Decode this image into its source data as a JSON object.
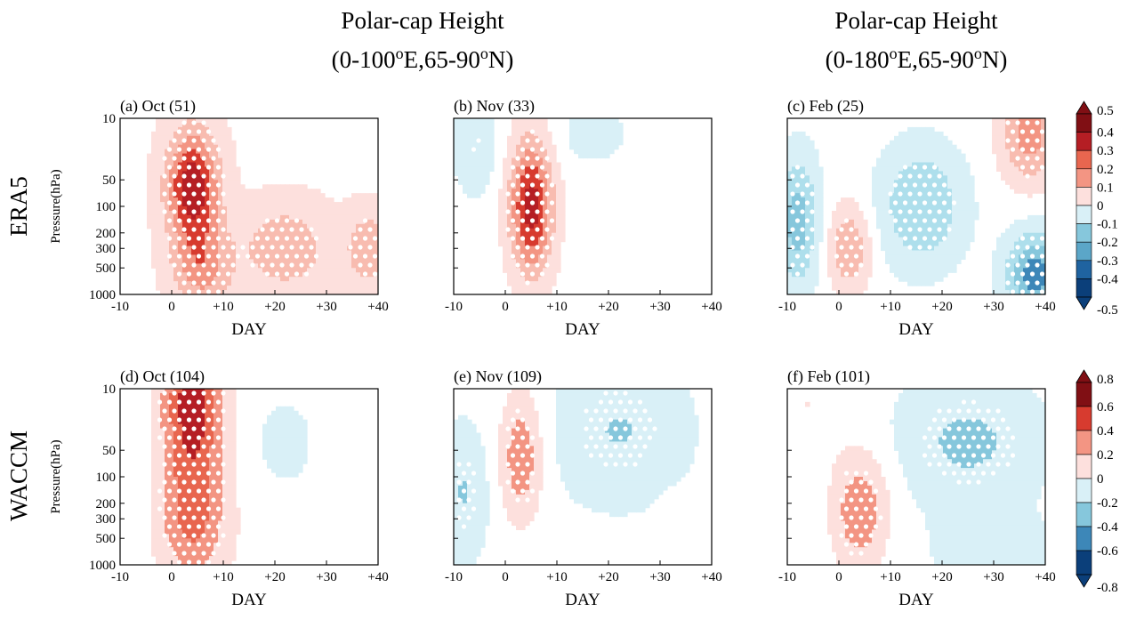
{
  "figure": {
    "column_titles": [
      {
        "line1": "Polar-cap Height",
        "line2_pre": "(0-100",
        "line2_sup": "o",
        "line2_mid": "E,65-90",
        "line2_sup2": "o",
        "line2_post": "N)"
      },
      {
        "line1": "Polar-cap Height",
        "line2_pre": "(0-180",
        "line2_sup": "o",
        "line2_mid": "E,65-90",
        "line2_sup2": "o",
        "line2_post": "N)"
      }
    ],
    "row_labels": [
      "ERA5",
      "WACCM"
    ]
  },
  "chart_data": [
    {
      "type": "heatmap",
      "panel": "a",
      "title": "(a) Oct (51)",
      "dataset": "ERA5",
      "xlabel": "DAY",
      "ylabel": "Pressure(hPa)",
      "xlim": [
        -10,
        40
      ],
      "ylim": [
        1000,
        10
      ],
      "yscale": "log",
      "xticks": [
        "-10",
        "0",
        "+10",
        "+20",
        "+30",
        "+40"
      ],
      "yticks": [
        "10",
        "50",
        "100",
        "200",
        "300",
        "500",
        "1000"
      ],
      "levels": [
        -0.5,
        -0.4,
        -0.3,
        -0.2,
        -0.1,
        0,
        0.1,
        0.2,
        0.3,
        0.4,
        0.5
      ],
      "features": [
        {
          "day": 4,
          "pressure": 60,
          "value": 0.5,
          "sign": "positive",
          "note": "maximum, stratosphere"
        },
        {
          "day": 6,
          "pressure": 500,
          "value": 0.25,
          "sign": "positive",
          "note": "downward extension"
        },
        {
          "day": 22,
          "pressure": 300,
          "value": 0.2,
          "sign": "positive"
        },
        {
          "day": 38,
          "pressure": 300,
          "value": 0.2,
          "sign": "positive"
        }
      ],
      "stippling": "significant over days 0 to +30, 30-1000 hPa and near +38"
    },
    {
      "type": "heatmap",
      "panel": "b",
      "title": "(b) Nov (33)",
      "dataset": "ERA5",
      "xlabel": "DAY",
      "ylabel": "",
      "xlim": [
        -10,
        40
      ],
      "ylim": [
        1000,
        10
      ],
      "yscale": "log",
      "xticks": [
        "-10",
        "0",
        "+10",
        "+20",
        "+30",
        "+40"
      ],
      "yticks": [],
      "levels": [
        -0.5,
        -0.4,
        -0.3,
        -0.2,
        -0.1,
        0,
        0.1,
        0.2,
        0.3,
        0.4,
        0.5
      ],
      "features": [
        {
          "day": 5,
          "pressure": 100,
          "value": 0.5,
          "sign": "positive",
          "note": "maximum"
        },
        {
          "day": -6,
          "pressure": 20,
          "value": -0.15,
          "sign": "negative"
        },
        {
          "day": 17,
          "pressure": 15,
          "value": -0.1,
          "sign": "negative"
        },
        {
          "day": 30,
          "pressure": 700,
          "value": 0.05,
          "sign": "positive"
        }
      ],
      "stippling": "significant over days 0 to +10, 20-1000 hPa"
    },
    {
      "type": "heatmap",
      "panel": "c",
      "title": "(c) Feb (25)",
      "dataset": "ERA5",
      "xlabel": "DAY",
      "ylabel": "",
      "xlim": [
        -10,
        40
      ],
      "ylim": [
        1000,
        10
      ],
      "yscale": "log",
      "xticks": [
        "-10",
        "0",
        "+10",
        "+20",
        "+30",
        "+40"
      ],
      "yticks": [],
      "levels": [
        -0.5,
        -0.4,
        -0.3,
        -0.2,
        -0.1,
        0,
        0.1,
        0.2,
        0.3,
        0.4,
        0.5
      ],
      "features": [
        {
          "day": -8,
          "pressure": 150,
          "value": -0.3,
          "sign": "negative"
        },
        {
          "day": 2,
          "pressure": 300,
          "value": 0.25,
          "sign": "positive"
        },
        {
          "day": 16,
          "pressure": 100,
          "value": -0.25,
          "sign": "negative"
        },
        {
          "day": 37,
          "pressure": 15,
          "value": 0.3,
          "sign": "positive"
        },
        {
          "day": 38,
          "pressure": 600,
          "value": -0.4,
          "sign": "negative"
        }
      ],
      "stippling": "significant at days -10 to -5, +10 to +25 and +34 to +40"
    },
    {
      "type": "heatmap",
      "panel": "d",
      "title": "(d) Oct (104)",
      "dataset": "WACCM",
      "xlabel": "DAY",
      "ylabel": "Pressure(hPa)",
      "xlim": [
        -10,
        40
      ],
      "ylim": [
        1000,
        10
      ],
      "yscale": "log",
      "xticks": [
        "-10",
        "0",
        "+10",
        "+20",
        "+30",
        "+40"
      ],
      "yticks": [
        "10",
        "50",
        "100",
        "200",
        "300",
        "500",
        "1000"
      ],
      "levels": [
        -0.8,
        -0.6,
        -0.4,
        -0.2,
        0,
        0.2,
        0.4,
        0.6,
        0.8
      ],
      "features": [
        {
          "day": 4,
          "pressure": 15,
          "value": 0.8,
          "sign": "positive",
          "note": "maximum"
        },
        {
          "day": 4,
          "pressure": 300,
          "value": 0.5,
          "sign": "positive"
        },
        {
          "day": 22,
          "pressure": 40,
          "value": -0.2,
          "sign": "negative"
        },
        {
          "day": -8,
          "pressure": 100,
          "value": -0.1,
          "sign": "negative"
        }
      ],
      "stippling": "significant over days -2 to +12, 10-1000 hPa"
    },
    {
      "type": "heatmap",
      "panel": "e",
      "title": "(e) Nov (109)",
      "dataset": "WACCM",
      "xlabel": "DAY",
      "ylabel": "",
      "xlim": [
        -10,
        40
      ],
      "ylim": [
        1000,
        10
      ],
      "yscale": "log",
      "xticks": [
        "-10",
        "0",
        "+10",
        "+20",
        "+30",
        "+40"
      ],
      "yticks": [],
      "levels": [
        -0.8,
        -0.6,
        -0.4,
        -0.2,
        0,
        0.2,
        0.4,
        0.6,
        0.8
      ],
      "features": [
        {
          "day": 3,
          "pressure": 60,
          "value": 0.5,
          "sign": "positive",
          "note": "maximum"
        },
        {
          "day": -8,
          "pressure": 150,
          "value": -0.25,
          "sign": "negative"
        },
        {
          "day": 22,
          "pressure": 30,
          "value": -0.25,
          "sign": "negative"
        },
        {
          "day": 35,
          "pressure": 300,
          "value": 0.1,
          "sign": "positive"
        }
      ],
      "stippling": "significant over days 0 to +10 and +15 to +35 in stratosphere"
    },
    {
      "type": "heatmap",
      "panel": "f",
      "title": "(f) Feb (101)",
      "dataset": "WACCM",
      "xlabel": "DAY",
      "ylabel": "",
      "xlim": [
        -10,
        40
      ],
      "ylim": [
        1000,
        10
      ],
      "yscale": "log",
      "xticks": [
        "-10",
        "0",
        "+10",
        "+20",
        "+30",
        "+40"
      ],
      "yticks": [],
      "levels": [
        -0.8,
        -0.6,
        -0.4,
        -0.2,
        0,
        0.2,
        0.4,
        0.6,
        0.8
      ],
      "features": [
        {
          "day": 4,
          "pressure": 250,
          "value": 0.5,
          "sign": "positive",
          "note": "maximum"
        },
        {
          "day": -6,
          "pressure": 15,
          "value": 0.15,
          "sign": "positive"
        },
        {
          "day": 25,
          "pressure": 40,
          "value": -0.3,
          "sign": "negative"
        },
        {
          "day": 30,
          "pressure": 700,
          "value": -0.1,
          "sign": "negative"
        }
      ],
      "stippling": "significant over days -2 to +15 and +12 to +40 in stratosphere"
    }
  ],
  "colorbars": [
    {
      "row": "ERA5",
      "labels": [
        "0.5",
        "0.4",
        "0.3",
        "0.2",
        "0.1",
        "0",
        "-0.1",
        "-0.2",
        "-0.3",
        "-0.4",
        "-0.5"
      ]
    },
    {
      "row": "WACCM",
      "labels": [
        "0.8",
        "0.6",
        "0.4",
        "0.2",
        "0",
        "-0.2",
        "-0.4",
        "-0.6",
        "-0.8"
      ]
    }
  ],
  "palette": {
    "pos": [
      "#fde0dd",
      "#f8bcb0",
      "#f39583",
      "#e8664f",
      "#d73b2f",
      "#b51e24",
      "#800f14"
    ],
    "neg": [
      "#d9f0f7",
      "#aedfec",
      "#86c7dc",
      "#5ba6c8",
      "#3d87b8",
      "#1f63a0",
      "#0b3f7a"
    ],
    "zero": "#ffffff"
  }
}
